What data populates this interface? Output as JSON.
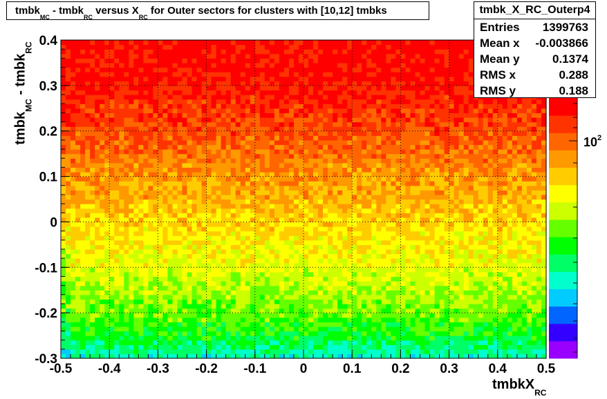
{
  "title": {
    "parts": [
      "tmbk",
      "MC",
      " - tmbk",
      "RC",
      " versus X",
      "RC",
      " for Outer sectors for clusters with [10,12] tmbks"
    ]
  },
  "stats": {
    "name": "tmbk_X_RC_Outerp4",
    "rows": [
      {
        "label": "Entries",
        "value": "1399763"
      },
      {
        "label": "Mean x",
        "value": "-0.003866"
      },
      {
        "label": "Mean y",
        "value": "0.1374"
      },
      {
        "label": "RMS x",
        "value": "0.288"
      },
      {
        "label": "RMS y",
        "value": "0.188"
      }
    ]
  },
  "axes": {
    "xlabel_main": "tmbkX",
    "xlabel_sub": "RC",
    "ylabel_main": "tmbk",
    "ylabel_sub1": "MC",
    "ylabel_mid": " - tmbk",
    "ylabel_sub2": "RC",
    "zlabel_base": "10",
    "zlabel_exp": "2"
  },
  "chart_data": {
    "type": "heatmap",
    "xlim": [
      -0.5,
      0.5
    ],
    "ylim": [
      -0.3,
      0.4
    ],
    "x_ticks": [
      -0.5,
      -0.4,
      -0.3,
      -0.2,
      -0.1,
      0,
      0.1,
      0.2,
      0.3,
      0.4,
      0.5
    ],
    "x_tick_labels": [
      "-0.5",
      "-0.4",
      "-0.3",
      "-0.2",
      "-0.1",
      "0",
      "0.1",
      "0.2",
      "0.3",
      "0.4",
      "0.5"
    ],
    "y_ticks": [
      -0.3,
      -0.2,
      -0.1,
      0,
      0.1,
      0.2,
      0.3,
      0.4
    ],
    "y_tick_labels": [
      "-0.3",
      "-0.2",
      "-0.1",
      "0",
      "0.1",
      "0.2",
      "0.3",
      "0.4"
    ],
    "grid": true,
    "z_scale": "log",
    "nbins_x": 100,
    "nbins_y": 70,
    "density_profile": {
      "y": [
        -0.3,
        -0.25,
        -0.2,
        -0.15,
        -0.1,
        -0.05,
        0,
        0.05,
        0.1,
        0.15,
        0.2,
        0.25,
        0.3,
        0.35,
        0.4
      ],
      "relative_level": [
        0.3,
        0.42,
        0.5,
        0.55,
        0.6,
        0.64,
        0.68,
        0.73,
        0.77,
        0.82,
        0.87,
        0.91,
        0.95,
        0.97,
        0.97
      ]
    },
    "palette": [
      "#9900ff",
      "#3300ff",
      "#0066ff",
      "#00ccff",
      "#00ffcc",
      "#00ff66",
      "#00ff00",
      "#66ff00",
      "#ccff00",
      "#ffff00",
      "#ffcc00",
      "#ff9900",
      "#ff6600",
      "#ff3300",
      "#ff0000"
    ]
  }
}
